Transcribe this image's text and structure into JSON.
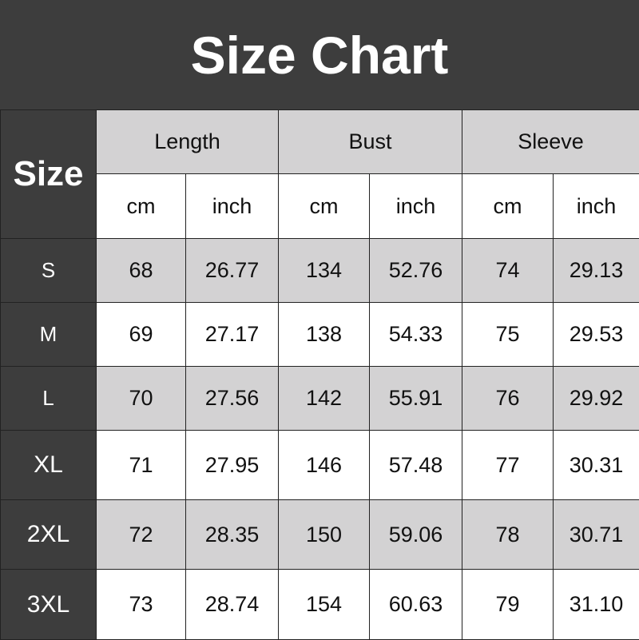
{
  "title": "Size Chart",
  "size_header": "Size",
  "groups": [
    "Length",
    "Bust",
    "Sleeve"
  ],
  "units": [
    "cm",
    "inch",
    "cm",
    "inch",
    "cm",
    "inch"
  ],
  "rows": [
    {
      "size": "S",
      "values": [
        "68",
        "26.77",
        "134",
        "52.76",
        "74",
        "29.13"
      ]
    },
    {
      "size": "M",
      "values": [
        "69",
        "27.17",
        "138",
        "54.33",
        "75",
        "29.53"
      ]
    },
    {
      "size": "L",
      "values": [
        "70",
        "27.56",
        "142",
        "55.91",
        "76",
        "29.92"
      ]
    },
    {
      "size": "XL",
      "values": [
        "71",
        "27.95",
        "146",
        "57.48",
        "77",
        "30.31"
      ]
    },
    {
      "size": "2XL",
      "values": [
        "72",
        "28.35",
        "150",
        "59.06",
        "78",
        "30.71"
      ]
    },
    {
      "size": "3XL",
      "values": [
        "73",
        "28.74",
        "154",
        "60.63",
        "79",
        "31.10"
      ]
    }
  ],
  "colors": {
    "dark": "#3d3d3d",
    "gray": "#d3d2d3",
    "white": "#ffffff"
  }
}
